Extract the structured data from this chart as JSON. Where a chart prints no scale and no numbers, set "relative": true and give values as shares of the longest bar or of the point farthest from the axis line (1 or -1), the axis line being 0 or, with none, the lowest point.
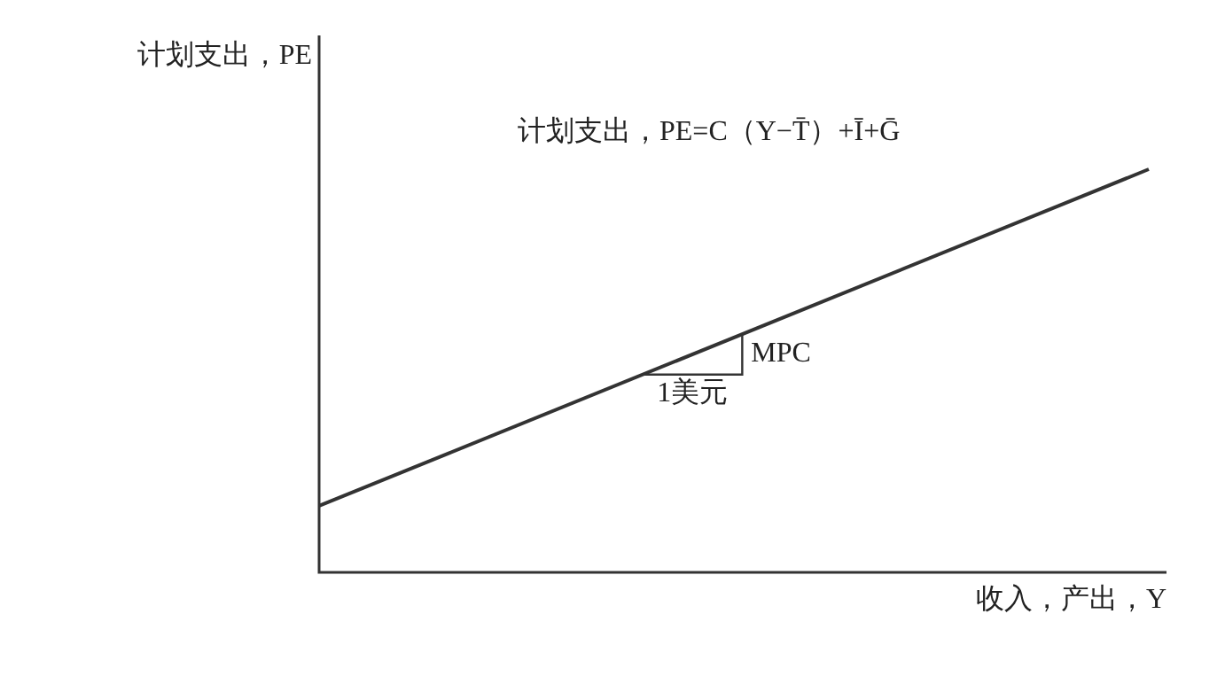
{
  "chart_data": {
    "type": "line",
    "relative": true,
    "ylabel": "计划支出，PE",
    "xlabel": "收入，产出，Y",
    "categories": [
      null,
      null
    ],
    "series": [
      {
        "color": "#333333",
        "values": [
          0.165,
          1
        ]
      }
    ],
    "annotations": [
      "计划支出，PE=C（Y−T̄）+Ī+Ḡ",
      "MPC",
      "1美元"
    ],
    "legend": false,
    "marker": "none",
    "line_style": "solid"
  }
}
